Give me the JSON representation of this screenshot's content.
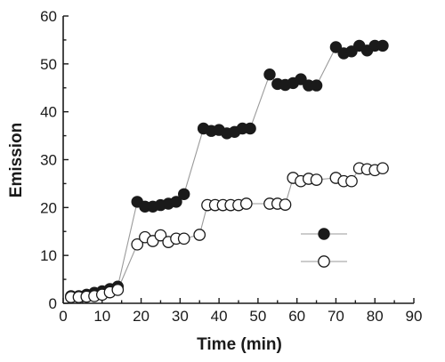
{
  "chart_data": {
    "type": "scatter",
    "xlabel": "Time (min)",
    "ylabel": "Emission",
    "xlim": [
      0,
      90
    ],
    "ylim": [
      0,
      60
    ],
    "x_ticks": [
      0,
      10,
      20,
      30,
      40,
      50,
      60,
      70,
      80,
      90
    ],
    "y_ticks": [
      0,
      10,
      20,
      30,
      40,
      50,
      60
    ],
    "grid": false,
    "legend_position": "lower-right",
    "series": [
      {
        "marker": "filled-circle",
        "color": "#1a1a1a",
        "points": [
          [
            2,
            1.5
          ],
          [
            4,
            1.5
          ],
          [
            6,
            1.8
          ],
          [
            8,
            2.2
          ],
          [
            10,
            2.5
          ],
          [
            12,
            3.0
          ],
          [
            14,
            3.5
          ],
          [
            19,
            21.2
          ],
          [
            21,
            20.2
          ],
          [
            23,
            20.2
          ],
          [
            25,
            20.5
          ],
          [
            27,
            20.8
          ],
          [
            29,
            21.2
          ],
          [
            31,
            22.8
          ],
          [
            36,
            36.5
          ],
          [
            38,
            36.0
          ],
          [
            40,
            36.2
          ],
          [
            42,
            35.5
          ],
          [
            44,
            35.8
          ],
          [
            46,
            36.5
          ],
          [
            48,
            36.5
          ],
          [
            53,
            47.8
          ],
          [
            55,
            45.8
          ],
          [
            57,
            45.6
          ],
          [
            59,
            46.0
          ],
          [
            61,
            46.8
          ],
          [
            63,
            45.5
          ],
          [
            65,
            45.5
          ],
          [
            70,
            53.5
          ],
          [
            72,
            52.2
          ],
          [
            74,
            52.6
          ],
          [
            76,
            53.8
          ],
          [
            78,
            52.8
          ],
          [
            80,
            53.8
          ],
          [
            82,
            53.8
          ]
        ]
      },
      {
        "marker": "open-circle",
        "color": "#1a1a1a",
        "points": [
          [
            2,
            1.3
          ],
          [
            4,
            1.3
          ],
          [
            6,
            1.4
          ],
          [
            8,
            1.5
          ],
          [
            10,
            1.8
          ],
          [
            12,
            2.3
          ],
          [
            14,
            2.8
          ],
          [
            19,
            12.3
          ],
          [
            21,
            13.8
          ],
          [
            23,
            13.0
          ],
          [
            25,
            14.2
          ],
          [
            27,
            12.8
          ],
          [
            29,
            13.5
          ],
          [
            31,
            13.5
          ],
          [
            35,
            14.3
          ],
          [
            37,
            20.5
          ],
          [
            39,
            20.5
          ],
          [
            41,
            20.5
          ],
          [
            43,
            20.5
          ],
          [
            45,
            20.5
          ],
          [
            47,
            20.8
          ],
          [
            53,
            20.8
          ],
          [
            55,
            20.8
          ],
          [
            57,
            20.6
          ],
          [
            59,
            26.2
          ],
          [
            61,
            25.5
          ],
          [
            63,
            26.0
          ],
          [
            65,
            25.8
          ],
          [
            70,
            26.2
          ],
          [
            72,
            25.5
          ],
          [
            74,
            25.5
          ],
          [
            76,
            28.2
          ],
          [
            78,
            28.0
          ],
          [
            80,
            27.8
          ],
          [
            82,
            28.2
          ]
        ]
      }
    ]
  }
}
